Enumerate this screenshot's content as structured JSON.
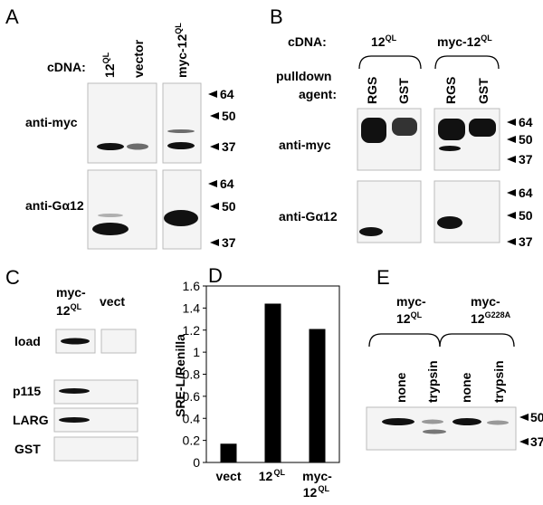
{
  "panels": {
    "A": {
      "letter": "A",
      "cdna_label": "cDNA:",
      "lanes": [
        {
          "text": "12",
          "sup": "QL"
        },
        {
          "text": "vector"
        },
        {
          "text": "myc-12",
          "sup": "QL"
        }
      ],
      "rows": [
        "anti-myc",
        "anti-Gα12"
      ],
      "markers": [
        [
          64,
          50,
          37
        ],
        [
          64,
          50,
          37
        ]
      ]
    },
    "B": {
      "letter": "B",
      "cdna_label": "cDNA:",
      "groups": [
        {
          "text": "12",
          "sup": "QL"
        },
        {
          "text": "myc-12",
          "sup": "QL"
        }
      ],
      "agent_label": [
        "pulldown",
        "agent:"
      ],
      "lanes": [
        "RGS",
        "GST",
        "RGS",
        "GST"
      ],
      "rows": [
        "anti-myc",
        "anti-Gα12"
      ],
      "markers": [
        [
          64,
          50,
          37
        ],
        [
          64,
          50,
          37
        ]
      ]
    },
    "C": {
      "letter": "C",
      "lanes": [
        {
          "text": "myc-",
          "line2": "12",
          "sup": "QL"
        },
        {
          "text": "vect"
        }
      ],
      "rows": [
        "load",
        "p115",
        "LARG",
        "GST"
      ]
    },
    "E": {
      "letter": "E",
      "groups": [
        {
          "text": "myc-",
          "line2": "12",
          "sup": "QL"
        },
        {
          "text": "myc-",
          "line2": "12",
          "sup": "G228A"
        }
      ],
      "lanes": [
        "none",
        "trypsin",
        "none",
        "trypsin"
      ],
      "markers": [
        50,
        37
      ]
    }
  },
  "chart_data": {
    "type": "bar",
    "letter": "D",
    "ylabel": "SRE-L/Renilla",
    "categories": [
      "vect",
      "12",
      "myc-12"
    ],
    "category_superscripts": [
      null,
      "QL",
      "QL"
    ],
    "values": [
      0.17,
      1.44,
      1.21
    ],
    "color": "#000000",
    "ylim": [
      0,
      1.6
    ],
    "yticks": [
      0,
      0.2,
      0.4,
      0.6,
      0.8,
      1,
      1.2,
      1.4,
      1.6
    ]
  }
}
